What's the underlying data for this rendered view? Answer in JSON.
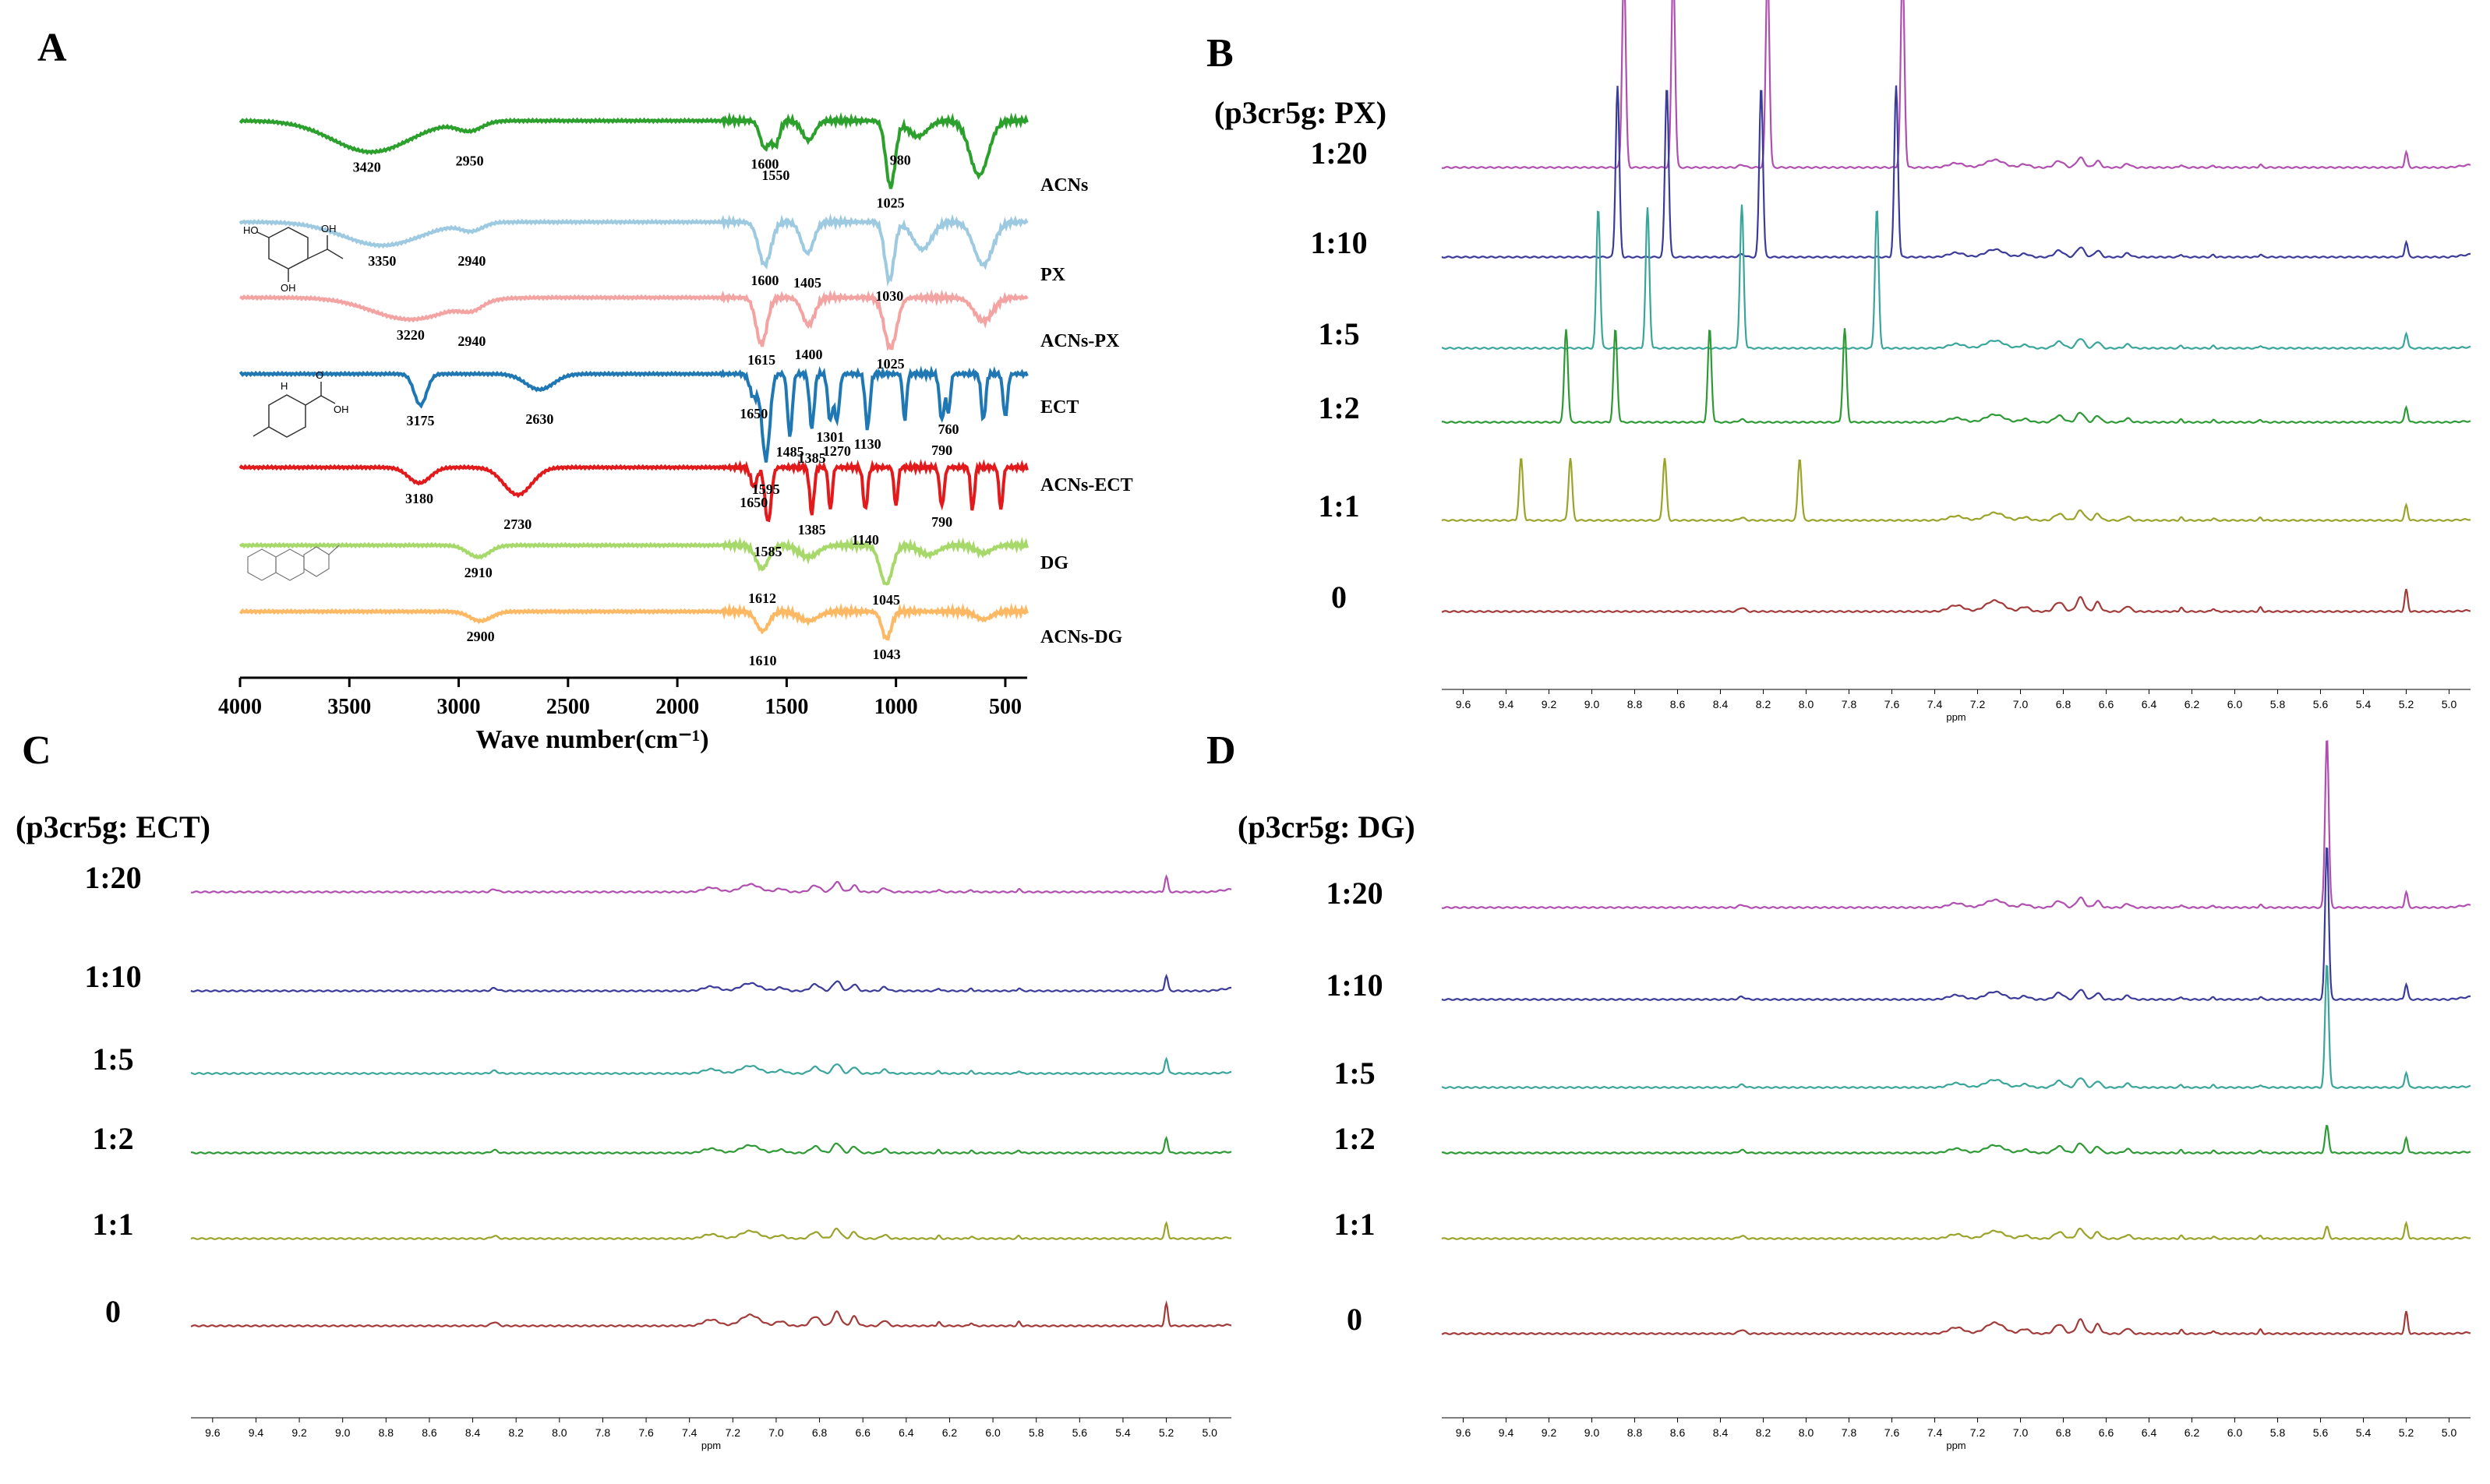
{
  "panels": {
    "a": "A",
    "b": "B",
    "c": "C",
    "d": "D"
  },
  "chart_data": [
    {
      "panel": "A",
      "type": "line",
      "xlabel": "Wave number(cm⁻¹)",
      "xlim": [
        4000,
        400
      ],
      "xticks": [
        4000,
        3500,
        3000,
        2500,
        2000,
        1500,
        1000,
        500
      ],
      "series": [
        {
          "name": "ACNs",
          "color": "#2ca02c",
          "annotations": [
            "3420",
            "2950",
            "1600",
            "1550",
            "1025",
            "980"
          ]
        },
        {
          "name": "PX",
          "color": "#9ecae1",
          "annotations": [
            "3350",
            "2940",
            "1600",
            "1405",
            "1030"
          ]
        },
        {
          "name": "ACNs-PX",
          "color": "#f4a3a3",
          "annotations": [
            "3220",
            "2940",
            "1615",
            "1400",
            "1025"
          ]
        },
        {
          "name": "ECT",
          "color": "#1f77b4",
          "annotations": [
            "3175",
            "2630",
            "1650",
            "1595",
            "1485",
            "1385",
            "1301",
            "1270",
            "1130",
            "790",
            "760"
          ]
        },
        {
          "name": "ACNs-ECT",
          "color": "#e31a1c",
          "annotations": [
            "3180",
            "2730",
            "1650",
            "1585",
            "1385",
            "1140",
            "790"
          ]
        },
        {
          "name": "DG",
          "color": "#a6d96a",
          "annotations": [
            "2910",
            "1612",
            "1045"
          ]
        },
        {
          "name": "ACNs-DG",
          "color": "#fdb863",
          "annotations": [
            "2900",
            "1610",
            "1043"
          ]
        }
      ]
    },
    {
      "panel": "B",
      "type": "line",
      "title": "(p3cr5g: PX)",
      "xlabel": "ppm",
      "xlim": [
        9.7,
        4.9
      ],
      "ratios": [
        "1:20",
        "1:10",
        "1:5",
        "1:2",
        "1:1",
        "0"
      ],
      "peaks_ppm": [
        8.85,
        8.62,
        8.18,
        7.55
      ],
      "peak_shift_by_ratio": [
        0,
        0.03,
        0.12,
        0.27,
        0.48
      ]
    },
    {
      "panel": "C",
      "type": "line",
      "title": "(p3cr5g: ECT)",
      "xlabel": "ppm",
      "xlim": [
        9.7,
        4.9
      ],
      "ratios": [
        "1:20",
        "1:10",
        "1:5",
        "1:2",
        "1:1",
        "0"
      ]
    },
    {
      "panel": "D",
      "type": "line",
      "title": "(p3cr5g: DG)",
      "xlabel": "ppm",
      "xlim": [
        9.7,
        4.9
      ],
      "ratios": [
        "1:20",
        "1:10",
        "1:5",
        "1:2",
        "1:1",
        "0"
      ],
      "peaks_ppm": [
        5.57
      ]
    }
  ],
  "nmr_ticks": [
    "9.6",
    "9.4",
    "9.2",
    "9.0",
    "8.8",
    "8.6",
    "8.4",
    "8.2",
    "8.0",
    "7.8",
    "7.6",
    "7.4",
    "7.2",
    "7.0",
    "6.8",
    "6.6",
    "6.4",
    "6.2",
    "6.0",
    "5.8",
    "5.6",
    "5.4",
    "5.2",
    "5.0"
  ],
  "colors": {
    "r1_20": "#b04fb0",
    "r1_10": "#3b3b9a",
    "r1_5": "#3aa59a",
    "r1_2": "#2e9a35",
    "r1_1": "#9aa32a",
    "r0": "#a33a3a"
  }
}
